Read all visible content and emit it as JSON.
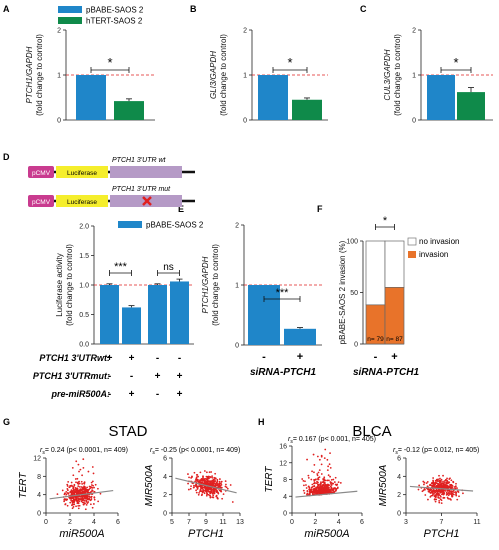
{
  "colors": {
    "blue": "#1f86c9",
    "green": "#0f8a4a",
    "orange": "#e8732a",
    "red": "#e02020",
    "gray": "#8a8a8a",
    "pink": "#c93b8f",
    "yellow": "#f5ee2c",
    "lavender": "#b59ac6"
  },
  "panels": {
    "A": {
      "letter": "A"
    },
    "B": {
      "letter": "B"
    },
    "C": {
      "letter": "C"
    },
    "D": {
      "letter": "D"
    },
    "E": {
      "letter": "E"
    },
    "F": {
      "letter": "F"
    },
    "G": {
      "letter": "G"
    },
    "H": {
      "letter": "H"
    }
  },
  "legend_top": {
    "pbabe": "pBABE-SAOS 2",
    "htert": "hTERT-SAOS 2"
  },
  "constructs": {
    "promoter": "pCMV",
    "luciferase": "Luciferase",
    "wt_label": "PTCH1 3'UTR wt",
    "mut_label": "PTCH1 3'UTR mut"
  },
  "panel_d_labels": {
    "row1": "PTCH1 3'UTRwt:",
    "row2": "PTCH1 3'UTRmut:",
    "row3": "pre-miR500A:",
    "signs": [
      [
        "+",
        "+",
        "-",
        "-"
      ],
      [
        "-",
        "-",
        "+",
        "+"
      ],
      [
        "-",
        "+",
        "-",
        "+"
      ]
    ]
  },
  "panel_e_xlabel": "siRNA-PTCH1",
  "panel_f": {
    "xlabel": "siRNA-PTCH1",
    "legend_no": "no invasion",
    "legend_inv": "invasion",
    "n_labels": [
      "n= 79",
      "n= 87"
    ]
  },
  "stad_title": "STAD",
  "blca_title": "BLCA",
  "chart_data": [
    {
      "type": "bar",
      "panel": "A",
      "ylabel": "PTCH1/GAPDH (fold change to control)",
      "series": [
        {
          "name": "pBABE-SAOS 2",
          "values": [
            1.0
          ]
        },
        {
          "name": "hTERT-SAOS 2",
          "values": [
            0.42
          ]
        }
      ],
      "errors": [
        0.0,
        0.05
      ],
      "ylim": [
        0,
        2
      ],
      "yticks": [
        "0",
        "1",
        "2"
      ],
      "significance": "*",
      "reference_line": 1
    },
    {
      "type": "bar",
      "panel": "B",
      "ylabel": "GLI3/GAPDH (fold change to control)",
      "series": [
        {
          "name": "pBABE-SAOS 2",
          "values": [
            1.0
          ]
        },
        {
          "name": "hTERT-SAOS 2",
          "values": [
            0.45
          ]
        }
      ],
      "errors": [
        0.0,
        0.04
      ],
      "ylim": [
        0,
        2
      ],
      "yticks": [
        "0",
        "1",
        "2"
      ],
      "significance": "*",
      "reference_line": 1
    },
    {
      "type": "bar",
      "panel": "C",
      "ylabel": "CUL3/GAPDH (fold change to control)",
      "series": [
        {
          "name": "pBABE-SAOS 2",
          "values": [
            1.0
          ]
        },
        {
          "name": "hTERT-SAOS 2",
          "values": [
            0.62
          ]
        }
      ],
      "errors": [
        0.0,
        0.1
      ],
      "ylim": [
        0,
        2
      ],
      "yticks": [
        "0",
        "1",
        "2"
      ],
      "significance": "*",
      "reference_line": 1
    },
    {
      "type": "bar",
      "panel": "D",
      "ylabel": "Luciferase activity (fold change to control)",
      "legend": "pBABE-SAOS 2",
      "values": [
        1.0,
        0.62,
        1.0,
        1.06
      ],
      "errors": [
        0.02,
        0.03,
        0.02,
        0.04
      ],
      "ylim": [
        0,
        2
      ],
      "yticks": [
        "0.0",
        "0.5",
        "1.0",
        "1.5",
        "2.0"
      ],
      "significance": [
        "***",
        "ns"
      ],
      "reference_line": 1
    },
    {
      "type": "bar",
      "panel": "E",
      "ylabel": "PTCH1/GAPDH (fold change to control)",
      "categories": [
        "-",
        "+"
      ],
      "values": [
        1.0,
        0.27
      ],
      "errors": [
        0.0,
        0.02
      ],
      "ylim": [
        0,
        2
      ],
      "yticks": [
        "0",
        "1",
        "2"
      ],
      "significance": "***",
      "reference_line": 1
    },
    {
      "type": "bar",
      "panel": "F",
      "ylabel": "pBABE-SAOS 2 invasion (%)",
      "categories": [
        "-",
        "+"
      ],
      "series": [
        {
          "name": "invasion",
          "values": [
            38,
            55
          ]
        },
        {
          "name": "no invasion",
          "values": [
            62,
            45
          ]
        }
      ],
      "ylim": [
        0,
        100
      ],
      "yticks": [
        "0",
        "50",
        "100"
      ],
      "significance": "*"
    },
    {
      "type": "scatter",
      "panel": "G1",
      "stat": "= 0.24 (p< 0.0001, n= 409)",
      "xlabel": "miR500A",
      "ylabel": "TERT",
      "xticks": [
        "0",
        "2",
        "4",
        "6"
      ],
      "yticks": [
        "0",
        "4",
        "8",
        "12"
      ],
      "xlim": [
        0,
        6
      ],
      "ylim": [
        0,
        12
      ],
      "n": 409,
      "rs": 0.24,
      "trend": [
        [
          0.3,
          3.1
        ],
        [
          5.6,
          4.9
        ]
      ]
    },
    {
      "type": "scatter",
      "panel": "G2",
      "stat": "= -0.25 (p< 0.0001, n= 409)",
      "xlabel": "PTCH1",
      "ylabel": "MIR500A",
      "xticks": [
        "5",
        "7",
        "9",
        "11",
        "13"
      ],
      "yticks": [
        "0",
        "2",
        "4",
        "6"
      ],
      "xlim": [
        5,
        13
      ],
      "ylim": [
        0,
        6
      ],
      "n": 409,
      "rs": -0.25,
      "trend": [
        [
          5.4,
          3.8
        ],
        [
          12.6,
          2.2
        ]
      ]
    },
    {
      "type": "scatter",
      "panel": "H1",
      "stat": "= 0.167 (p< 0.001, n= 405)",
      "xlabel": "miR500A",
      "ylabel": "TERT",
      "xticks": [
        "0",
        "2",
        "4",
        "6"
      ],
      "yticks": [
        "0",
        "4",
        "8",
        "12",
        "16"
      ],
      "xlim": [
        0,
        6
      ],
      "ylim": [
        0,
        16
      ],
      "n": 405,
      "rs": 0.167,
      "trend": [
        [
          0.3,
          3.8
        ],
        [
          5.6,
          5.2
        ]
      ]
    },
    {
      "type": "scatter",
      "panel": "H2",
      "stat": "= -0.12 (p= 0.012, n= 405)",
      "xlabel": "PTCH1",
      "ylabel": "MIR500A",
      "xticks": [
        "3",
        "7",
        "11"
      ],
      "yticks": [
        "0",
        "2",
        "4",
        "6"
      ],
      "xlim": [
        3,
        12
      ],
      "ylim": [
        0,
        6
      ],
      "n": 405,
      "rs": -0.12,
      "trend": [
        [
          3.5,
          2.9
        ],
        [
          11.5,
          2.4
        ]
      ]
    }
  ]
}
